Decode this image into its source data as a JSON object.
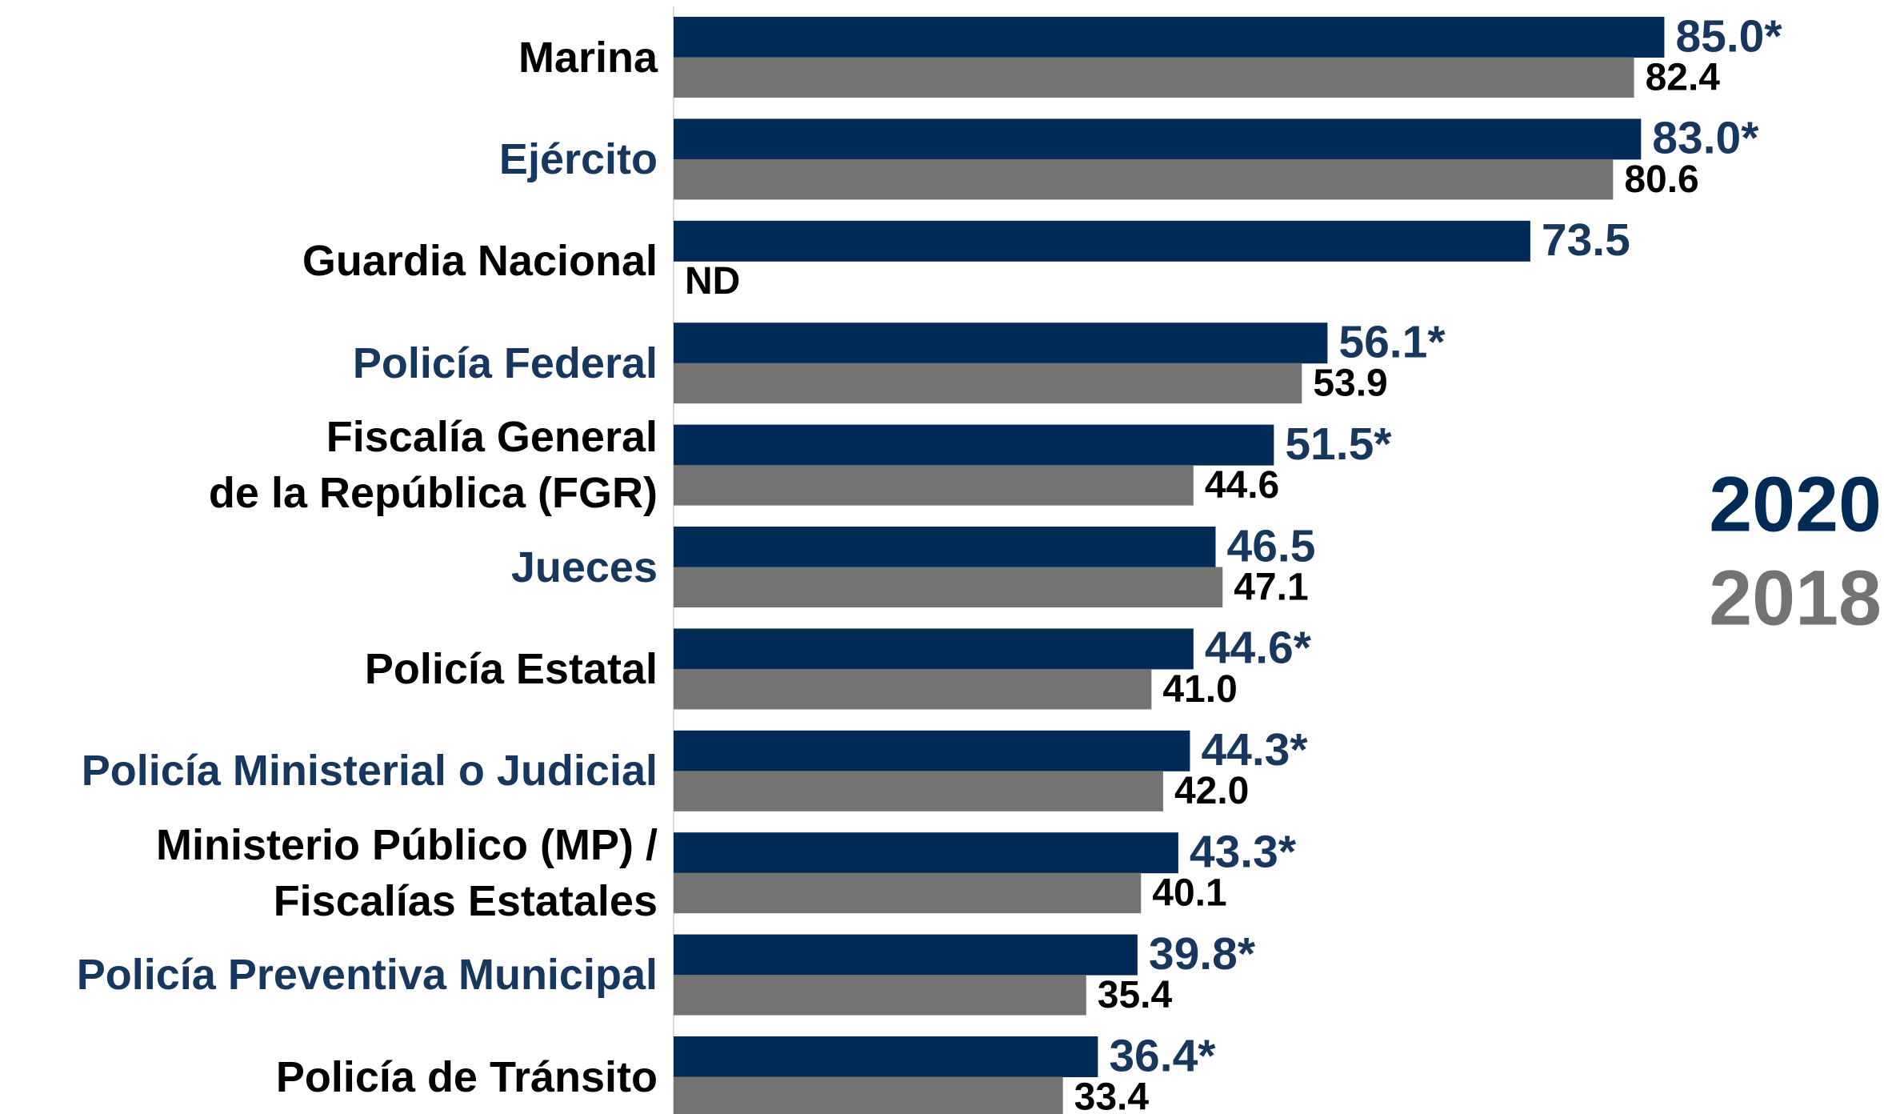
{
  "chart_data": {
    "type": "hbar",
    "categories": [
      "Marina",
      "Ejército",
      "Guardia Nacional",
      "Policía Federal",
      "Fiscalía General\nde la República (FGR)",
      "Jueces",
      "Policía Estatal",
      "Policía Ministerial o Judicial",
      "Ministerio Público (MP) /\nFiscalías Estatales",
      "Policía Preventiva Municipal",
      "Policía de Tránsito"
    ],
    "category_colors": [
      "#000000",
      "#17375e",
      "#000000",
      "#17375e",
      "#000000",
      "#17375e",
      "#000000",
      "#17375e",
      "#000000",
      "#17375e",
      "#000000"
    ],
    "series": [
      {
        "name": "2020",
        "color": "#002b57",
        "label_color": "#17375e",
        "values": [
          85.0,
          83.0,
          73.5,
          56.1,
          51.5,
          46.5,
          44.6,
          44.3,
          43.3,
          39.8,
          36.4
        ],
        "value_labels": [
          "85.0*",
          "83.0*",
          "73.5",
          "56.1*",
          "51.5*",
          "46.5",
          "44.6*",
          "44.3*",
          "43.3*",
          "39.8*",
          "36.4*"
        ]
      },
      {
        "name": "2018",
        "color": "#737373",
        "label_color": "#000000",
        "values": [
          82.4,
          80.6,
          null,
          53.9,
          44.6,
          47.1,
          41.0,
          42.0,
          40.1,
          35.4,
          33.4
        ],
        "value_labels": [
          "82.4",
          "80.6",
          "ND",
          "53.9",
          "44.6",
          "47.1",
          "41.0",
          "42.0",
          "40.1",
          "35.4",
          "33.4"
        ]
      }
    ],
    "xlim": [
      0,
      100
    ]
  }
}
